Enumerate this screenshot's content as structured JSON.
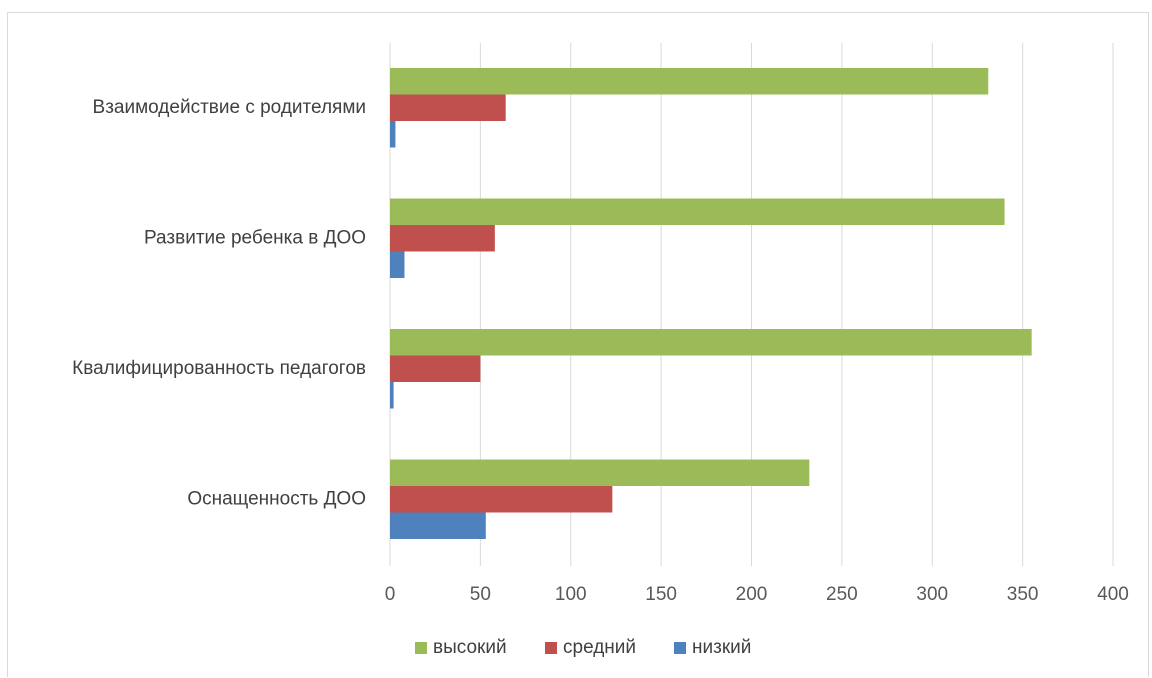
{
  "chart_data": {
    "type": "bar",
    "orientation": "horizontal",
    "categories": [
      "Взаимодействие с родителями",
      "Развитие ребенка в ДОО",
      "Квалифицированность педагогов",
      "Оснащенность ДОО"
    ],
    "series": [
      {
        "name": "высокий",
        "color": "#9bbb59",
        "values": [
          331,
          340,
          355,
          232
        ]
      },
      {
        "name": "средний",
        "color": "#c0504d",
        "values": [
          64,
          58,
          50,
          123
        ]
      },
      {
        "name": "низкий",
        "color": "#4f81bd",
        "values": [
          3,
          8,
          2,
          53
        ]
      }
    ],
    "xlim": [
      0,
      400
    ],
    "xticks": [
      0,
      50,
      100,
      150,
      200,
      250,
      300,
      350,
      400
    ],
    "grid": true,
    "legend_position": "bottom"
  }
}
